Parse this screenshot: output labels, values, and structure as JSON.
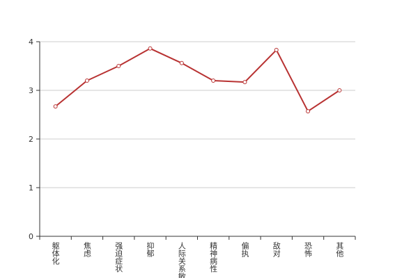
{
  "chart_data": {
    "type": "line",
    "categories": [
      "躯体化",
      "焦虑",
      "强迫症状",
      "抑郁",
      "人际关系敏感",
      "精神病性",
      "偏执",
      "敌对",
      "恐怖",
      "其他"
    ],
    "series": [
      {
        "color": "#b83232",
        "values": [
          2.67,
          3.2,
          3.5,
          3.86,
          3.56,
          3.2,
          3.17,
          3.83,
          2.57,
          3.0
        ]
      }
    ],
    "ylim": [
      0,
      4
    ],
    "yticks": [
      0,
      1,
      2,
      3,
      4
    ],
    "grid": true
  }
}
